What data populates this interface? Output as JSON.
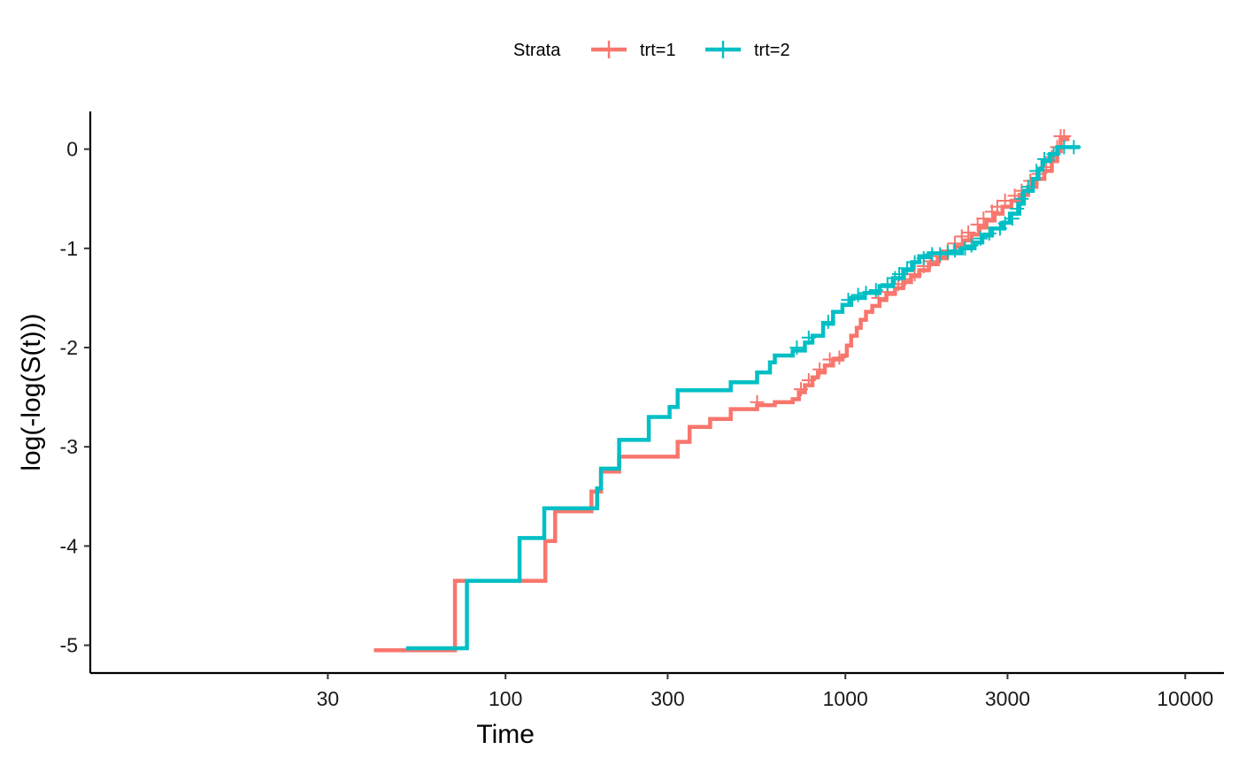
{
  "chart_data": {
    "type": "line",
    "xlabel": "Time",
    "ylabel": "log(-log(S(t)))",
    "x_scale": "log10",
    "xlim": [
      6,
      13000
    ],
    "ylim": [
      -5.28,
      0.38
    ],
    "x_ticks": [
      30,
      100,
      300,
      1000,
      3000,
      10000
    ],
    "x_tick_labels": [
      "30",
      "100",
      "300",
      "1000",
      "3000",
      "10000"
    ],
    "y_ticks": [
      0,
      -1,
      -2,
      -3,
      -4,
      -5
    ],
    "y_tick_labels": [
      "0",
      "-1",
      "-2",
      "-3",
      "-4",
      "-5"
    ],
    "legend": {
      "title": "Strata",
      "position": "top",
      "entries": [
        "trt=1",
        "trt=2"
      ]
    },
    "grid": false,
    "series": [
      {
        "name": "trt=1",
        "color": "#F8766D",
        "step": "post",
        "points": [
          [
            41,
            -5.05
          ],
          [
            71,
            -4.35
          ],
          [
            131,
            -3.95
          ],
          [
            140,
            -3.65
          ],
          [
            179,
            -3.45
          ],
          [
            191,
            -3.25
          ],
          [
            216,
            -3.1
          ],
          [
            321,
            -2.95
          ],
          [
            348,
            -2.8
          ],
          [
            400,
            -2.72
          ],
          [
            460,
            -2.62
          ],
          [
            550,
            -2.58
          ],
          [
            620,
            -2.55
          ],
          [
            700,
            -2.52
          ],
          [
            730,
            -2.45
          ],
          [
            760,
            -2.38
          ],
          [
            800,
            -2.3
          ],
          [
            830,
            -2.25
          ],
          [
            870,
            -2.18
          ],
          [
            920,
            -2.12
          ],
          [
            980,
            -2.08
          ],
          [
            1010,
            -1.98
          ],
          [
            1040,
            -1.88
          ],
          [
            1080,
            -1.8
          ],
          [
            1110,
            -1.72
          ],
          [
            1150,
            -1.64
          ],
          [
            1200,
            -1.58
          ],
          [
            1260,
            -1.52
          ],
          [
            1320,
            -1.46
          ],
          [
            1400,
            -1.4
          ],
          [
            1480,
            -1.34
          ],
          [
            1560,
            -1.28
          ],
          [
            1650,
            -1.22
          ],
          [
            1760,
            -1.16
          ],
          [
            1870,
            -1.1
          ],
          [
            1990,
            -1.04
          ],
          [
            2100,
            -0.98
          ],
          [
            2230,
            -0.92
          ],
          [
            2350,
            -0.86
          ],
          [
            2480,
            -0.79
          ],
          [
            2600,
            -0.72
          ],
          [
            2750,
            -0.65
          ],
          [
            2900,
            -0.58
          ],
          [
            3080,
            -0.52
          ],
          [
            3260,
            -0.46
          ],
          [
            3450,
            -0.38
          ],
          [
            3650,
            -0.3
          ],
          [
            3850,
            -0.22
          ],
          [
            4050,
            -0.12
          ],
          [
            4200,
            -0.02
          ],
          [
            4300,
            0.1
          ],
          [
            4500,
            0.13
          ]
        ],
        "censored": [
          [
            4300,
            0.13
          ],
          [
            4400,
            0.13
          ],
          [
            4200,
            0.02
          ],
          [
            4050,
            -0.08
          ],
          [
            3900,
            -0.18
          ],
          [
            3700,
            -0.25
          ],
          [
            3500,
            -0.32
          ],
          [
            3300,
            -0.42
          ],
          [
            3150,
            -0.47
          ],
          [
            2950,
            -0.52
          ],
          [
            2800,
            -0.58
          ],
          [
            2700,
            -0.63
          ],
          [
            2550,
            -0.7
          ],
          [
            2450,
            -0.76
          ],
          [
            2300,
            -0.84
          ],
          [
            2200,
            -0.88
          ],
          [
            2100,
            -0.95
          ],
          [
            2000,
            -1.02
          ],
          [
            1900,
            -1.08
          ],
          [
            1780,
            -1.13
          ],
          [
            1700,
            -1.18
          ],
          [
            1600,
            -1.26
          ],
          [
            1500,
            -1.31
          ],
          [
            1430,
            -1.36
          ],
          [
            1330,
            -1.44
          ],
          [
            1250,
            -1.5
          ],
          [
            960,
            -2.1
          ],
          [
            900,
            -2.12
          ],
          [
            840,
            -2.22
          ],
          [
            780,
            -2.33
          ],
          [
            740,
            -2.42
          ],
          [
            550,
            -2.55
          ]
        ]
      },
      {
        "name": "trt=2",
        "color": "#00BFC4",
        "step": "post",
        "points": [
          [
            51,
            -5.03
          ],
          [
            77,
            -4.35
          ],
          [
            110,
            -3.92
          ],
          [
            130,
            -3.62
          ],
          [
            186,
            -3.42
          ],
          [
            191,
            -3.22
          ],
          [
            216,
            -2.93
          ],
          [
            264,
            -2.7
          ],
          [
            304,
            -2.6
          ],
          [
            321,
            -2.43
          ],
          [
            460,
            -2.35
          ],
          [
            550,
            -2.25
          ],
          [
            600,
            -2.15
          ],
          [
            620,
            -2.08
          ],
          [
            700,
            -2.03
          ],
          [
            760,
            -1.95
          ],
          [
            800,
            -1.88
          ],
          [
            860,
            -1.76
          ],
          [
            920,
            -1.64
          ],
          [
            980,
            -1.57
          ],
          [
            1040,
            -1.5
          ],
          [
            1140,
            -1.45
          ],
          [
            1260,
            -1.38
          ],
          [
            1380,
            -1.3
          ],
          [
            1480,
            -1.22
          ],
          [
            1570,
            -1.14
          ],
          [
            1650,
            -1.08
          ],
          [
            1760,
            -1.05
          ],
          [
            2200,
            -1.0
          ],
          [
            2400,
            -0.94
          ],
          [
            2530,
            -0.87
          ],
          [
            2700,
            -0.8
          ],
          [
            2900,
            -0.74
          ],
          [
            3050,
            -0.65
          ],
          [
            3250,
            -0.55
          ],
          [
            3350,
            -0.42
          ],
          [
            3560,
            -0.3
          ],
          [
            3700,
            -0.2
          ],
          [
            3800,
            -0.12
          ],
          [
            4000,
            -0.05
          ],
          [
            4200,
            0.02
          ],
          [
            4900,
            0.02
          ]
        ],
        "censored": [
          [
            4700,
            0.02
          ],
          [
            4400,
            0.02
          ],
          [
            4100,
            -0.05
          ],
          [
            3850,
            -0.1
          ],
          [
            3650,
            -0.22
          ],
          [
            3450,
            -0.38
          ],
          [
            3300,
            -0.5
          ],
          [
            3200,
            -0.6
          ],
          [
            3100,
            -0.7
          ],
          [
            2950,
            -0.75
          ],
          [
            2850,
            -0.8
          ],
          [
            2650,
            -0.85
          ],
          [
            2500,
            -0.9
          ],
          [
            2350,
            -0.97
          ],
          [
            2250,
            -1.0
          ],
          [
            2100,
            -1.02
          ],
          [
            2000,
            -1.04
          ],
          [
            1900,
            -1.06
          ],
          [
            1800,
            -1.06
          ],
          [
            1700,
            -1.1
          ],
          [
            1600,
            -1.14
          ],
          [
            1520,
            -1.2
          ],
          [
            1440,
            -1.26
          ],
          [
            1400,
            -1.3
          ],
          [
            1330,
            -1.36
          ],
          [
            1230,
            -1.42
          ],
          [
            1150,
            -1.45
          ],
          [
            1090,
            -1.47
          ],
          [
            1020,
            -1.52
          ],
          [
            890,
            -1.74
          ],
          [
            780,
            -1.9
          ],
          [
            720,
            -2.0
          ]
        ]
      }
    ]
  }
}
